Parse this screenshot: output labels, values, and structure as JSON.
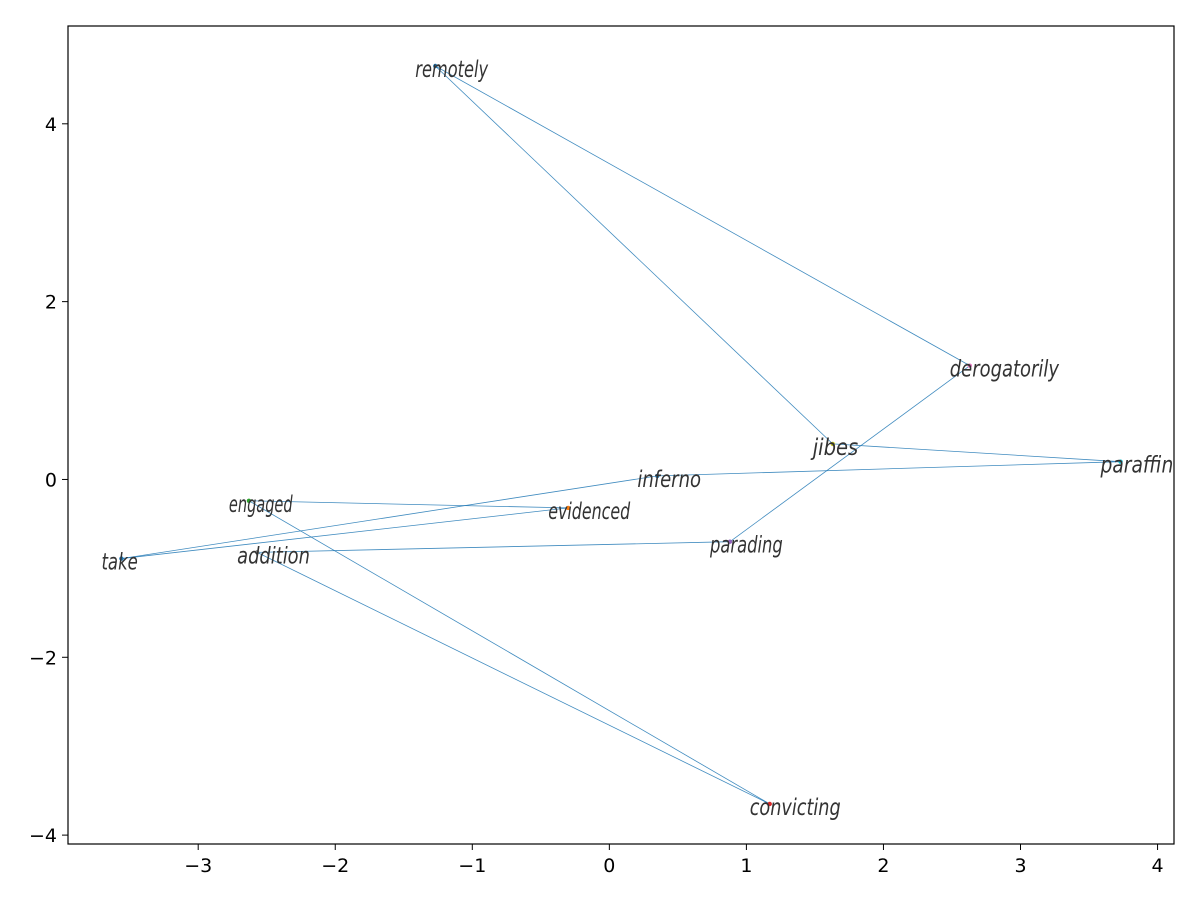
{
  "chart_data": {
    "type": "scatter",
    "title": "",
    "xlabel": "",
    "ylabel": "",
    "xlim": [
      -3.95,
      4.12
    ],
    "ylim": [
      -4.1,
      5.1
    ],
    "xticks": [
      -3,
      -2,
      -1,
      0,
      1,
      2,
      3,
      4
    ],
    "yticks": [
      -4,
      -2,
      0,
      2,
      4
    ],
    "xtick_labels": [
      "−3",
      "−2",
      "−1",
      "0",
      "1",
      "2",
      "3",
      "4"
    ],
    "ytick_labels": [
      "−4",
      "−2",
      "0",
      "2",
      "4"
    ],
    "grid": false,
    "line_color": "#1f77b4",
    "label_color": "#333333",
    "points": [
      {
        "word": "remotely",
        "x": -1.27,
        "y": 4.65,
        "color": "#1f77b4"
      },
      {
        "word": "derogatorily",
        "x": 2.63,
        "y": 1.28,
        "color": "#e377c2"
      },
      {
        "word": "jibes",
        "x": 1.63,
        "y": 0.4,
        "color": "#bcbd22"
      },
      {
        "word": "paraffin",
        "x": 3.73,
        "y": 0.2,
        "color": "#17becf"
      },
      {
        "word": "inferno",
        "x": 0.35,
        "y": 0.04,
        "color": "#1f77b4"
      },
      {
        "word": "engaged",
        "x": -2.63,
        "y": -0.24,
        "color": "#2ca02c"
      },
      {
        "word": "evidenced",
        "x": -0.3,
        "y": -0.32,
        "color": "#ff7f0e"
      },
      {
        "word": "parading",
        "x": 0.88,
        "y": -0.7,
        "color": "#9467bd"
      },
      {
        "word": "addition",
        "x": -2.57,
        "y": -0.82,
        "color": "#7f7f7f"
      },
      {
        "word": "take",
        "x": -3.56,
        "y": -0.89,
        "color": "#1f77b4"
      },
      {
        "word": "convicting",
        "x": 1.17,
        "y": -3.65,
        "color": "#d62728"
      }
    ],
    "path": [
      "remotely",
      "derogatorily",
      "parading",
      "addition",
      "convicting",
      "engaged",
      "evidenced",
      "take",
      "take",
      "inferno",
      "paraffin",
      "jibes",
      "remotely"
    ]
  }
}
